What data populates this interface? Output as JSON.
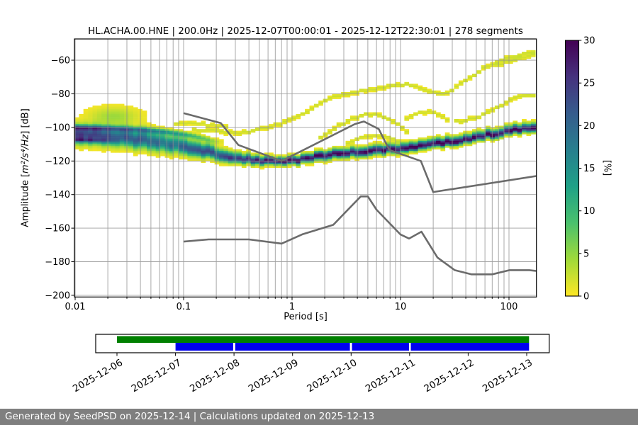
{
  "title": "HL.ACHA.00.HNE | 200.0Hz | 2025-12-07T00:00:01 - 2025-12-12T22:30:01 | 278 segments",
  "footer": {
    "text": "Generated by SeedPSD on 2025-12-14 | Calculations updated on 2025-12-13"
  },
  "chart_data": {
    "type": "heatmap",
    "title": "HL.ACHA.00.HNE | 200.0Hz | 2025-12-07T00:00:01 - 2025-12-12T22:30:01 | 278 segments",
    "xlabel": "Period [s]",
    "ylabel": "Amplitude [m²/s⁴/Hz] [dB]",
    "ylabel_parts": {
      "prefix": "Amplitude [",
      "math": "m²/s⁴/Hz",
      "suffix": "] [dB]"
    },
    "xscale": "log",
    "xlim": [
      0.00985,
      179
    ],
    "ylim": [
      -200.9,
      -47.3
    ],
    "grid": true,
    "xticks": {
      "values": [
        0.01,
        0.1,
        1,
        10,
        100
      ],
      "labels": [
        "0.01",
        "0.1",
        "1",
        "10",
        "100"
      ]
    },
    "yticks": {
      "values": [
        -60,
        -80,
        -100,
        -120,
        -140,
        -160,
        -180,
        -200
      ],
      "labels": [
        "−60",
        "−80",
        "−100",
        "−120",
        "−140",
        "−160",
        "−180",
        "−200"
      ]
    },
    "colorbar": {
      "label": "[%]",
      "lim": [
        0,
        30
      ],
      "ticks": [
        0,
        5,
        10,
        15,
        20,
        25,
        30
      ],
      "colormap": "viridis_r",
      "stops": [
        "#fde725",
        "#a0da39",
        "#4ac16d",
        "#1fa187",
        "#277f8e",
        "#365c8d",
        "#46327e",
        "#440154"
      ]
    },
    "noise_models": [
      {
        "name": "NHNM",
        "color": "#6b6b6b",
        "points": [
          [
            0.1,
            -91.5
          ],
          [
            0.22,
            -97.4
          ],
          [
            0.32,
            -110.5
          ],
          [
            0.8,
            -120.0
          ],
          [
            3.8,
            -98.0
          ],
          [
            4.6,
            -96.5
          ],
          [
            6.3,
            -101.0
          ],
          [
            7.9,
            -113.5
          ],
          [
            15.4,
            -120.0
          ],
          [
            20.0,
            -138.5
          ],
          [
            354.8,
            -126.0
          ]
        ]
      },
      {
        "name": "NLNM",
        "color": "#6b6b6b",
        "points": [
          [
            0.1,
            -168.0
          ],
          [
            0.17,
            -166.7
          ],
          [
            0.4,
            -166.7
          ],
          [
            0.8,
            -169.2
          ],
          [
            1.24,
            -163.7
          ],
          [
            2.4,
            -158.0
          ],
          [
            4.3,
            -141.1
          ],
          [
            5.0,
            -141.1
          ],
          [
            6.0,
            -149.0
          ],
          [
            10.0,
            -163.8
          ],
          [
            12.0,
            -166.2
          ],
          [
            15.6,
            -162.1
          ],
          [
            21.9,
            -177.5
          ],
          [
            31.6,
            -185.0
          ],
          [
            45.0,
            -187.5
          ],
          [
            70.0,
            -187.5
          ],
          [
            101.0,
            -185.0
          ],
          [
            154.0,
            -185.0
          ],
          [
            328.0,
            -187.5
          ]
        ]
      }
    ],
    "ppsd": {
      "bins_per_decade": 24,
      "db_bin": 1,
      "mode": [
        [
          0.0097,
          -104.2
        ],
        [
          0.013,
          -104.8
        ],
        [
          0.02,
          -105.6
        ],
        [
          0.03,
          -106.6
        ],
        [
          0.05,
          -108.2
        ],
        [
          0.08,
          -110.2
        ],
        [
          0.12,
          -112.6
        ],
        [
          0.2,
          -116
        ],
        [
          0.3,
          -118.2
        ],
        [
          0.45,
          -119.7
        ],
        [
          0.7,
          -120.7
        ],
        [
          1,
          -120.2
        ],
        [
          1.6,
          -117.4
        ],
        [
          2.5,
          -115.9
        ],
        [
          4,
          -114.8
        ],
        [
          7,
          -113.4
        ],
        [
          10,
          -112.6
        ],
        [
          15,
          -111.2
        ],
        [
          25,
          -109.2
        ],
        [
          40,
          -107.2
        ],
        [
          70,
          -104.3
        ],
        [
          110,
          -101.9
        ],
        [
          179,
          -100
        ]
      ],
      "max_pct": [
        [
          0.0097,
          25
        ],
        [
          0.03,
          21
        ],
        [
          0.08,
          19
        ],
        [
          0.15,
          21
        ],
        [
          0.3,
          25
        ],
        [
          0.5,
          28
        ],
        [
          0.8,
          30
        ],
        [
          179,
          30
        ]
      ],
      "sigma_above": [
        [
          0.0097,
          4.8
        ],
        [
          0.05,
          5.4
        ],
        [
          0.12,
          4.4
        ],
        [
          0.3,
          3.0
        ],
        [
          0.7,
          2.1
        ],
        [
          2,
          2.3
        ],
        [
          6,
          2.5
        ],
        [
          179,
          2.6
        ]
      ],
      "sigma_below": [
        [
          0.0097,
          4.6
        ],
        [
          0.05,
          4.6
        ],
        [
          0.12,
          3.6
        ],
        [
          0.3,
          2.4
        ],
        [
          0.7,
          1.8
        ],
        [
          2,
          2.2
        ],
        [
          6,
          2.2
        ],
        [
          20,
          1.9
        ],
        [
          179,
          1.9
        ]
      ],
      "upper_lane": {
        "points": [
          [
            0.0097,
            -100.2
          ],
          [
            0.02,
            -100.6
          ],
          [
            0.04,
            -101.4
          ],
          [
            0.07,
            -102.8
          ],
          [
            0.12,
            -105
          ],
          [
            0.2,
            -108.5
          ]
        ],
        "amp": [
          [
            0.0097,
            16
          ],
          [
            0.05,
            14
          ],
          [
            0.1,
            11
          ],
          [
            0.16,
            7
          ],
          [
            0.24,
            0.1
          ]
        ],
        "sigma": 1.5
      },
      "left_core": {
        "points": [
          [
            0.0097,
            -107.5
          ],
          [
            0.025,
            -108.3
          ]
        ],
        "amp": [
          [
            0.0097,
            13
          ],
          [
            0.015,
            10
          ],
          [
            0.028,
            0.1
          ]
        ],
        "sigma": 1.3
      },
      "high_bump": {
        "logp": -1.64,
        "db": -93.5,
        "amp": 4.5,
        "sigma_logp": 0.21,
        "sigma_db": 5.0
      }
    },
    "outlier_traces": [
      {
        "name": "high-outlier-main",
        "amp": 2.4,
        "points": [
          [
            0.12,
            -101
          ],
          [
            0.2,
            -102.5
          ],
          [
            0.35,
            -103.2
          ],
          [
            0.6,
            -100
          ],
          [
            0.85,
            -97
          ],
          [
            1.1,
            -94
          ],
          [
            1.5,
            -89
          ],
          [
            2,
            -83.5
          ],
          [
            3.4,
            -79.5
          ],
          [
            5.6,
            -77
          ],
          [
            8.5,
            -75.5
          ],
          [
            12,
            -74.5
          ],
          [
            16,
            -77
          ],
          [
            21,
            -80
          ],
          [
            28,
            -79.5
          ],
          [
            33,
            -76
          ],
          [
            45,
            -70
          ],
          [
            60,
            -64
          ],
          [
            80,
            -60.5
          ],
          [
            100,
            -58.3
          ],
          [
            130,
            -56.2
          ],
          [
            179,
            -55
          ]
        ]
      },
      {
        "name": "high-outlier-fork",
        "amp": 2.2,
        "points": [
          [
            75,
            -63
          ],
          [
            100,
            -60.6
          ],
          [
            125,
            -58.8
          ],
          [
            179,
            -57
          ]
        ]
      },
      {
        "name": "mid-hump",
        "amp": 2.4,
        "points": [
          [
            1.8,
            -107
          ],
          [
            2.5,
            -100
          ],
          [
            3.5,
            -95
          ],
          [
            5,
            -92
          ],
          [
            6.5,
            -92.5
          ],
          [
            8,
            -95.5
          ],
          [
            10,
            -99
          ],
          [
            12,
            -104
          ]
        ]
      },
      {
        "name": "mid-arc",
        "amp": 2.2,
        "points": [
          [
            3,
            -110
          ],
          [
            4.5,
            -106
          ],
          [
            6,
            -104.5
          ],
          [
            8,
            -106
          ],
          [
            10,
            -109
          ],
          [
            13,
            -112
          ]
        ]
      },
      {
        "name": "right-outlier",
        "amp": 2.4,
        "points": [
          [
            30,
            -97
          ],
          [
            40,
            -95.5
          ],
          [
            55,
            -93
          ],
          [
            75,
            -89
          ],
          [
            100,
            -83.5
          ],
          [
            120,
            -81.5
          ],
          [
            179,
            -81
          ]
        ]
      },
      {
        "name": "short-streak",
        "amp": 2.2,
        "points": [
          [
            0.085,
            -97.2
          ],
          [
            0.15,
            -98.2
          ],
          [
            0.25,
            -99.8
          ]
        ]
      },
      {
        "name": "teens-hump",
        "amp": 2.2,
        "points": [
          [
            11,
            -95
          ],
          [
            14,
            -91.5
          ],
          [
            18,
            -90.5
          ],
          [
            23,
            -93
          ],
          [
            28,
            -96
          ]
        ]
      }
    ],
    "timeline": {
      "dates": [
        "2025-12-06",
        "2025-12-07",
        "2025-12-08",
        "2025-12-09",
        "2025-12-10",
        "2025-12-11",
        "2025-12-12",
        "2025-12-13"
      ],
      "axis_days": [
        -0.363,
        7.386
      ],
      "green_color": "#008000",
      "blue_color": "#0000ee",
      "green_segments_days": [
        [
          0,
          7.04
        ]
      ],
      "blue_segments_days": [
        [
          1.0,
          1.985
        ],
        [
          2.02,
          3.98
        ],
        [
          4.015,
          4.99
        ],
        [
          5.02,
          7.04
        ]
      ]
    }
  }
}
